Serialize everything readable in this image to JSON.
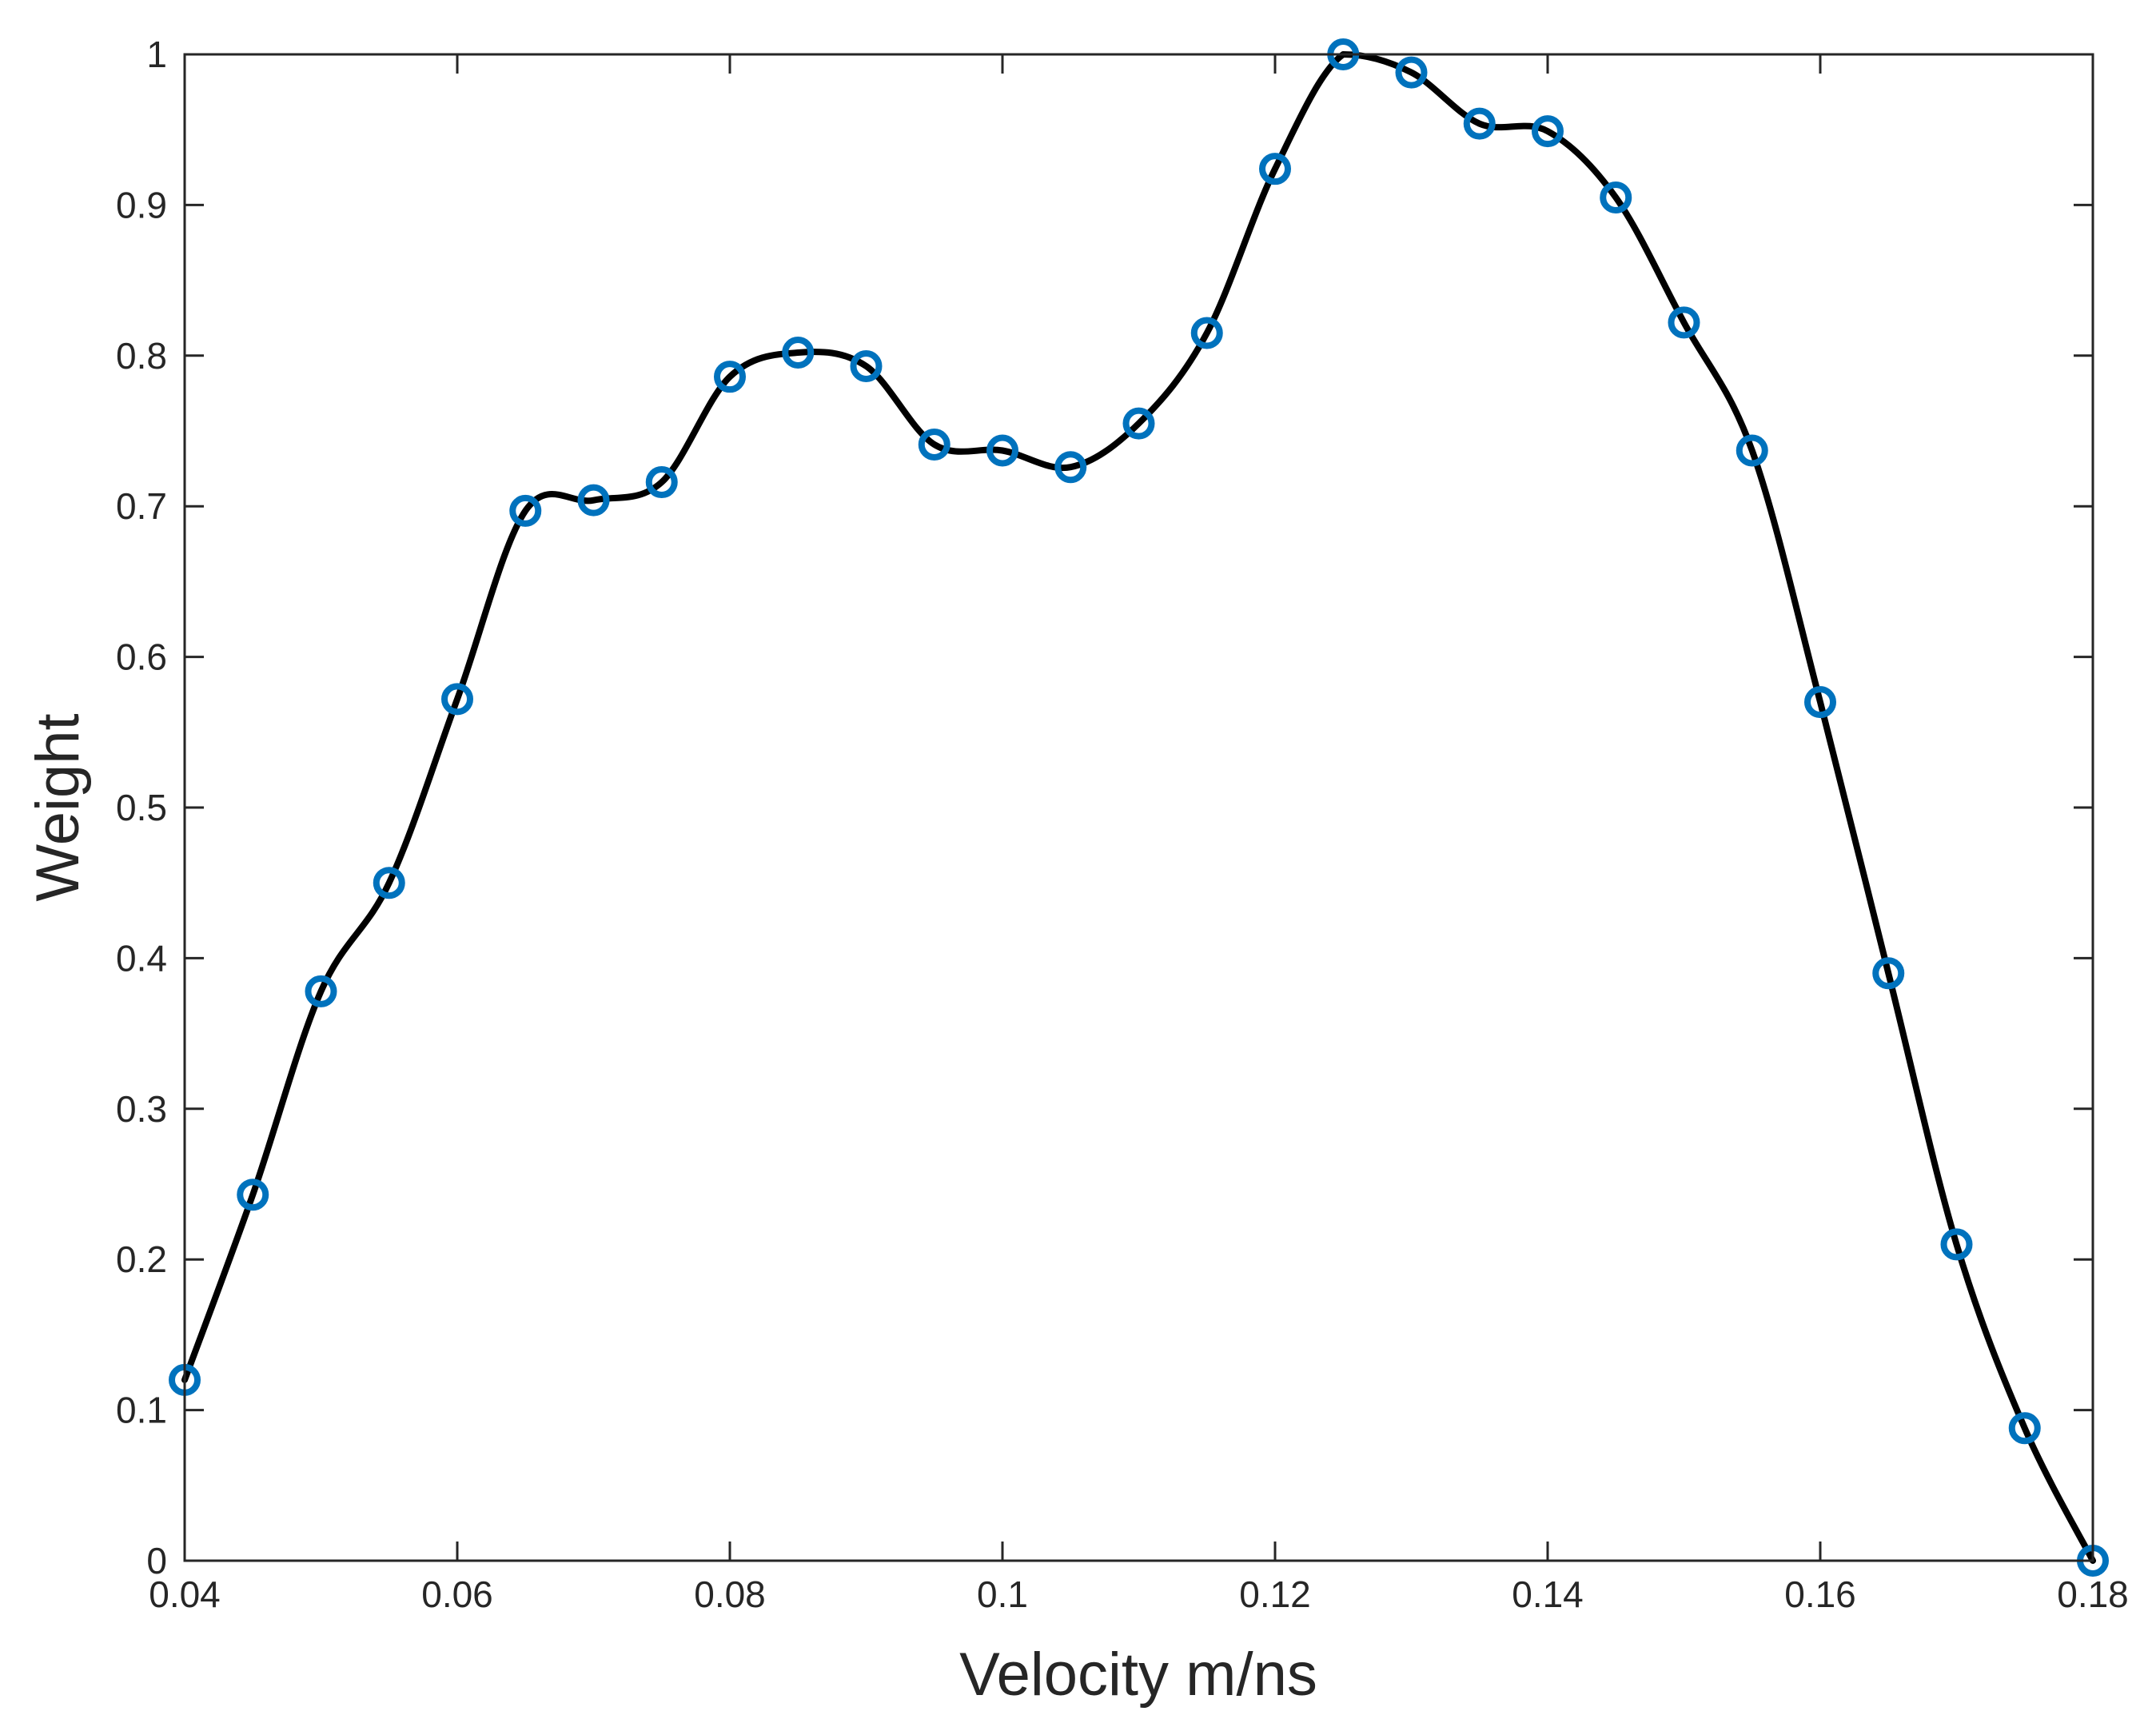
{
  "chart_data": {
    "type": "line",
    "title": "",
    "xlabel": "Velocity m/ns",
    "ylabel": "Weight",
    "xlim": [
      0.04,
      0.18
    ],
    "ylim": [
      0,
      1
    ],
    "grid": false,
    "legend": "none",
    "x_ticks": [
      {
        "value": 0.04,
        "label": "0.04"
      },
      {
        "value": 0.06,
        "label": "0.06"
      },
      {
        "value": 0.08,
        "label": "0.08"
      },
      {
        "value": 0.1,
        "label": "0.1"
      },
      {
        "value": 0.12,
        "label": "0.12"
      },
      {
        "value": 0.14,
        "label": "0.14"
      },
      {
        "value": 0.16,
        "label": "0.16"
      },
      {
        "value": 0.18,
        "label": "0.18"
      }
    ],
    "y_ticks": [
      {
        "value": 0,
        "label": "0"
      },
      {
        "value": 0.1,
        "label": "0.1"
      },
      {
        "value": 0.2,
        "label": "0.2"
      },
      {
        "value": 0.3,
        "label": "0.3"
      },
      {
        "value": 0.4,
        "label": "0.4"
      },
      {
        "value": 0.5,
        "label": "0.5"
      },
      {
        "value": 0.6,
        "label": "0.6"
      },
      {
        "value": 0.7,
        "label": "0.7"
      },
      {
        "value": 0.8,
        "label": "0.8"
      },
      {
        "value": 0.9,
        "label": "0.9"
      },
      {
        "value": 1,
        "label": "1"
      }
    ],
    "series": [
      {
        "line_color": "#000000",
        "marker": "circle",
        "marker_color": "#0072BD",
        "x": [
          0.04,
          0.045,
          0.05,
          0.055,
          0.06,
          0.065,
          0.07,
          0.075,
          0.08,
          0.085,
          0.09,
          0.095,
          0.1,
          0.105,
          0.11,
          0.115,
          0.12,
          0.125,
          0.13,
          0.135,
          0.14,
          0.145,
          0.15,
          0.155,
          0.16,
          0.165,
          0.17,
          0.175,
          0.18
        ],
        "y": [
          0.12,
          0.243,
          0.378,
          0.45,
          0.572,
          0.697,
          0.704,
          0.716,
          0.786,
          0.802,
          0.793,
          0.741,
          0.737,
          0.726,
          0.755,
          0.815,
          0.924,
          1.0,
          0.988,
          0.954,
          0.949,
          0.905,
          0.822,
          0.737,
          0.57,
          0.39,
          0.21,
          0.088,
          0.0
        ]
      }
    ]
  }
}
